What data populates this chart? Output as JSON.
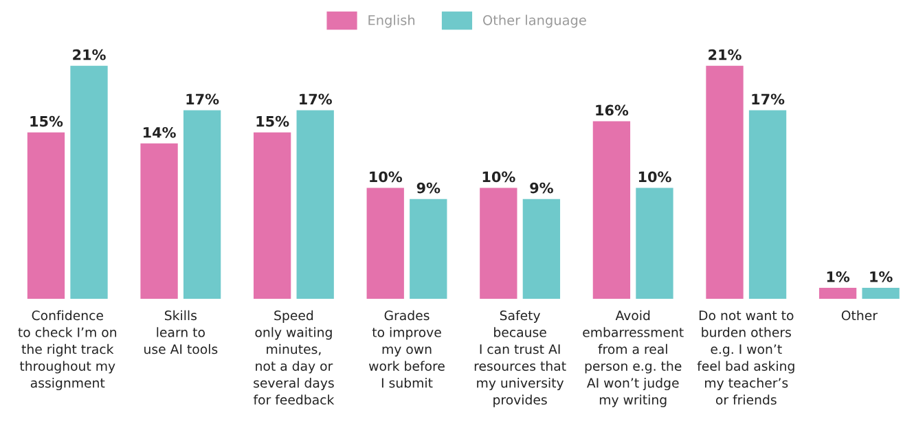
{
  "chart_data": {
    "type": "bar",
    "categories": [
      "Confidence\nto check I’m on\nthe right track\nthroughout my\nassignment",
      "Skills\nlearn to\nuse AI tools",
      "Speed\nonly waiting\nminutes,\nnot a day or\nseveral days\nfor feedback",
      "Grades\nto improve\nmy own\nwork before\nI submit",
      "Safety\nbecause\nI can trust AI\nresources that\nmy university\nprovides",
      "Avoid\nembarressment\nfrom a real\nperson e.g. the\nAI won’t judge\nmy writing",
      "Do not want to\nburden others\ne.g. I won’t\nfeel bad asking\nmy teacher’s\nor friends",
      "Other"
    ],
    "series": [
      {
        "name": "English",
        "color": "#e472ac",
        "values": [
          15,
          14,
          15,
          10,
          10,
          16,
          21,
          1
        ],
        "value_labels": [
          "15%",
          "14%",
          "15%",
          "10%",
          "10%",
          "16%",
          "21%",
          "1%"
        ]
      },
      {
        "name": "Other language",
        "color": "#6fc9cb",
        "values": [
          21,
          17,
          17,
          9,
          9,
          10,
          17,
          1
        ],
        "value_labels": [
          "21%",
          "17%",
          "17%",
          "9%",
          "9%",
          "10%",
          "17%",
          "1%"
        ]
      }
    ],
    "legend": "top",
    "grid": false
  }
}
